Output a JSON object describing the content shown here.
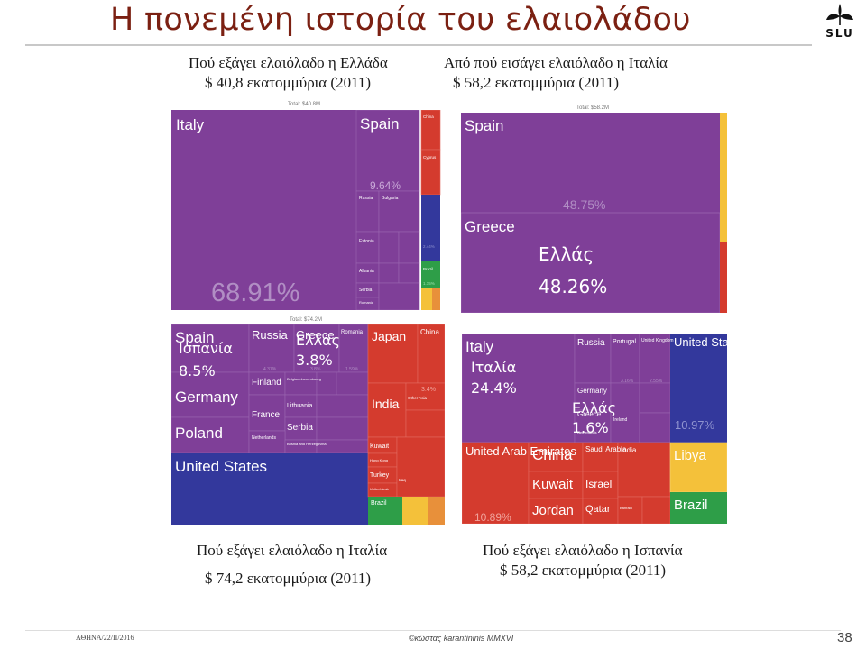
{
  "slide": {
    "title": "Η πονεμένη ιστορία του ελαιολάδου",
    "logo_text": "SLU",
    "footer_left": "ΑΘΗΝΑ/22/ΙΙ/2016",
    "footer_mid": "©κώστας karantininis MMXVI",
    "page_number": "38"
  },
  "captions": {
    "tl_title": "Πού εξάγει ελαιόλαδο η Ελλάδα",
    "tl_value": "$ 40,8 εκατομμύρια (2011)",
    "tr_title": "Από πού εισάγει ελαιόλαδο η Ιταλία",
    "tr_value": "$ 58,2 εκατομμύρια (2011)",
    "bl_title": "Πού εξάγει ελαιόλαδο η Ιταλία",
    "bl_value": "$ 74,2 εκατομμύρια (2011)",
    "br_title": "Πού εξάγει ελαιόλαδο η Ισπανία",
    "br_value": "$ 58,2 εκατομμύρια (2011)"
  },
  "totals": {
    "tl": "Total: $40.8M",
    "tr": "Total: $58.2M",
    "bl": "Total: $74.2M"
  },
  "overlay": {
    "tr_greece": "Ελλάς",
    "tr_greece_pct": "48.26%",
    "bl_spain": "Ισπανία",
    "bl_spain_pct": "8.5%",
    "bl_greece": "Ελλάς",
    "bl_greece_pct": "3.8%",
    "br_italy": "Ιταλία",
    "br_italy_pct": "24.4%",
    "br_greece": "Ελλάς",
    "br_greece_pct": "1.6%"
  },
  "colors": {
    "europe": "#7f3f98",
    "asia": "#d43b2e",
    "north_america": "#33389c",
    "south_america": "#2e9e48",
    "africa": "#f4c13a",
    "oceania": "#e8903a",
    "title": "#7b2012"
  },
  "chart_data": [
    {
      "type": "treemap",
      "id": "tl",
      "labels": [
        {
          "text": "Italy"
        },
        {
          "text": "Spain"
        },
        {
          "text": "9.64%"
        },
        {
          "text": "Russia"
        },
        {
          "text": "Bulgaria"
        },
        {
          "text": "Estonia"
        },
        {
          "text": "Albania"
        },
        {
          "text": "Serbia"
        },
        {
          "text": "Romania"
        },
        {
          "text": "China"
        },
        {
          "text": "Cyprus"
        },
        {
          "text": "2.44%"
        },
        {
          "text": "Brazil"
        },
        {
          "text": "1.15%"
        },
        {
          "text": "68.91%"
        }
      ]
    },
    {
      "type": "treemap",
      "id": "tr",
      "labels": [
        {
          "text": "Spain"
        },
        {
          "text": "48.75%"
        },
        {
          "text": "Greece"
        }
      ]
    },
    {
      "type": "treemap",
      "id": "bl",
      "labels": [
        {
          "text": "Spain"
        },
        {
          "text": "Russia"
        },
        {
          "text": "Greece"
        },
        {
          "text": "Romania"
        },
        {
          "text": "4.37%"
        },
        {
          "text": "3.8%"
        },
        {
          "text": "1.59%"
        },
        {
          "text": "Finland"
        },
        {
          "text": "Belgium-Luxembourg"
        },
        {
          "text": "Germany"
        },
        {
          "text": "Lithuania"
        },
        {
          "text": "France"
        },
        {
          "text": "Serbia"
        },
        {
          "text": "Poland"
        },
        {
          "text": "Netherlands"
        },
        {
          "text": "Bosnia and Herzegovina"
        },
        {
          "text": "United States"
        },
        {
          "text": "Japan"
        },
        {
          "text": "China"
        },
        {
          "text": "3.4%"
        },
        {
          "text": "India"
        },
        {
          "text": "Other Asia"
        },
        {
          "text": "Kuwait"
        },
        {
          "text": "Hong Kong"
        },
        {
          "text": "Turkey"
        },
        {
          "text": "Iraq"
        },
        {
          "text": "United Arab"
        },
        {
          "text": "Brazil"
        }
      ]
    },
    {
      "type": "treemap",
      "id": "br",
      "labels": [
        {
          "text": "Italy"
        },
        {
          "text": "Russia"
        },
        {
          "text": "Portugal"
        },
        {
          "text": "United Kingdom"
        },
        {
          "text": "3.16%"
        },
        {
          "text": "2.55%"
        },
        {
          "text": "Germany"
        },
        {
          "text": "Greece"
        },
        {
          "text": "Ireland"
        },
        {
          "text": "Netherlands"
        },
        {
          "text": "United States"
        },
        {
          "text": "10.97%"
        },
        {
          "text": "United Arab Emirates"
        },
        {
          "text": "10.89%"
        },
        {
          "text": "China"
        },
        {
          "text": "Saudi Arabia"
        },
        {
          "text": "India"
        },
        {
          "text": "Kuwait"
        },
        {
          "text": "Israel"
        },
        {
          "text": "Jordan"
        },
        {
          "text": "Qatar"
        },
        {
          "text": "Bahrain"
        },
        {
          "text": "Libya"
        },
        {
          "text": "Brazil"
        }
      ]
    }
  ]
}
